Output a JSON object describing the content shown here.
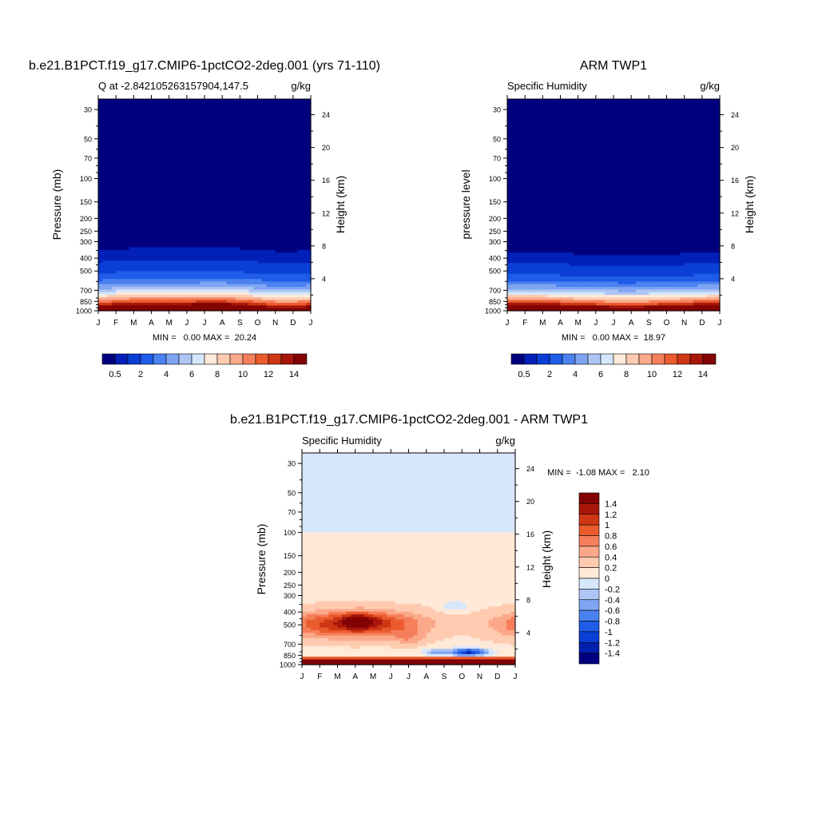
{
  "colors": {
    "q_palette": [
      "#00007f",
      "#0020b8",
      "#0a3fd6",
      "#1f5ce8",
      "#4b82f0",
      "#7fa5f2",
      "#adc6f5",
      "#d6e6fb",
      "#ffe9d8",
      "#ffcbb0",
      "#fba88a",
      "#f57f5a",
      "#ea5b2e",
      "#cf3614",
      "#a8160a",
      "#820303"
    ],
    "diff_palette": [
      "#00007f",
      "#0020b0",
      "#0a3fd6",
      "#1f5ce8",
      "#4b82f0",
      "#7fa5f2",
      "#adc6f5",
      "#d6e6fb",
      "#ffe9d8",
      "#ffcbb0",
      "#fba88a",
      "#f57f5a",
      "#ea5b2e",
      "#cf3614",
      "#a8160a",
      "#820303"
    ]
  },
  "chart_data": [
    {
      "type": "heatmap",
      "title": "b.e21.B1PCT.f19_g17.CMIP6-1pctCO2-2deg.001 (yrs 71-110)",
      "left_label": "Q at -2.842105263157904,147.5",
      "right_label": "g/kg",
      "ylabel": "Pressure (mb)",
      "ylabel_right": "Height (km)",
      "x_ticks": [
        "J",
        "F",
        "M",
        "A",
        "M",
        "J",
        "J",
        "A",
        "S",
        "O",
        "N",
        "D",
        "J"
      ],
      "y_ticks": [
        30,
        50,
        70,
        100,
        150,
        200,
        250,
        300,
        400,
        500,
        700,
        850,
        1000
      ],
      "y_right_ticks": [
        24,
        20,
        16,
        12,
        8,
        4
      ],
      "stats": "MIN =   0.00 MAX =  20.24",
      "min": 0.0,
      "max": 20.24,
      "colorbar_labels": [
        "0.5",
        "2",
        "4",
        "6",
        "8",
        "10",
        "12",
        "14"
      ]
    },
    {
      "type": "heatmap",
      "title": "ARM TWP1",
      "left_label": "Specific Humidity",
      "right_label": "g/kg",
      "ylabel": "pressure level",
      "ylabel_right": "Height (km)",
      "x_ticks": [
        "J",
        "F",
        "M",
        "A",
        "M",
        "J",
        "J",
        "A",
        "S",
        "O",
        "N",
        "D",
        "J"
      ],
      "y_ticks": [
        30,
        50,
        70,
        100,
        150,
        200,
        250,
        300,
        400,
        500,
        700,
        850,
        1000
      ],
      "y_right_ticks": [
        24,
        20,
        16,
        12,
        8,
        4
      ],
      "stats": "MIN =   0.00 MAX =  18.97",
      "min": 0.0,
      "max": 18.97,
      "colorbar_labels": [
        "0.5",
        "2",
        "4",
        "6",
        "8",
        "10",
        "12",
        "14"
      ]
    },
    {
      "type": "heatmap",
      "title": "b.e21.B1PCT.f19_g17.CMIP6-1pctCO2-2deg.001 - ARM TWP1",
      "left_label": "Specific Humidity",
      "right_label": "g/kg",
      "ylabel": "Pressure (mb)",
      "ylabel_right": "Height (km)",
      "x_ticks": [
        "J",
        "F",
        "M",
        "A",
        "M",
        "J",
        "J",
        "A",
        "S",
        "O",
        "N",
        "D",
        "J"
      ],
      "y_ticks": [
        30,
        50,
        70,
        100,
        150,
        200,
        250,
        300,
        400,
        500,
        700,
        850,
        1000
      ],
      "y_right_ticks": [
        24,
        20,
        16,
        12,
        8,
        4
      ],
      "stats": "MIN =  -1.08 MAX =   2.10",
      "min": -1.08,
      "max": 2.1,
      "colorbar_labels": [
        "1.4",
        "1.2",
        "1",
        "0.8",
        "0.6",
        "0.4",
        "0.2",
        "0",
        "-0.2",
        "-0.4",
        "-0.6",
        "-0.8",
        "-1",
        "-1.2",
        "-1.4"
      ]
    }
  ]
}
